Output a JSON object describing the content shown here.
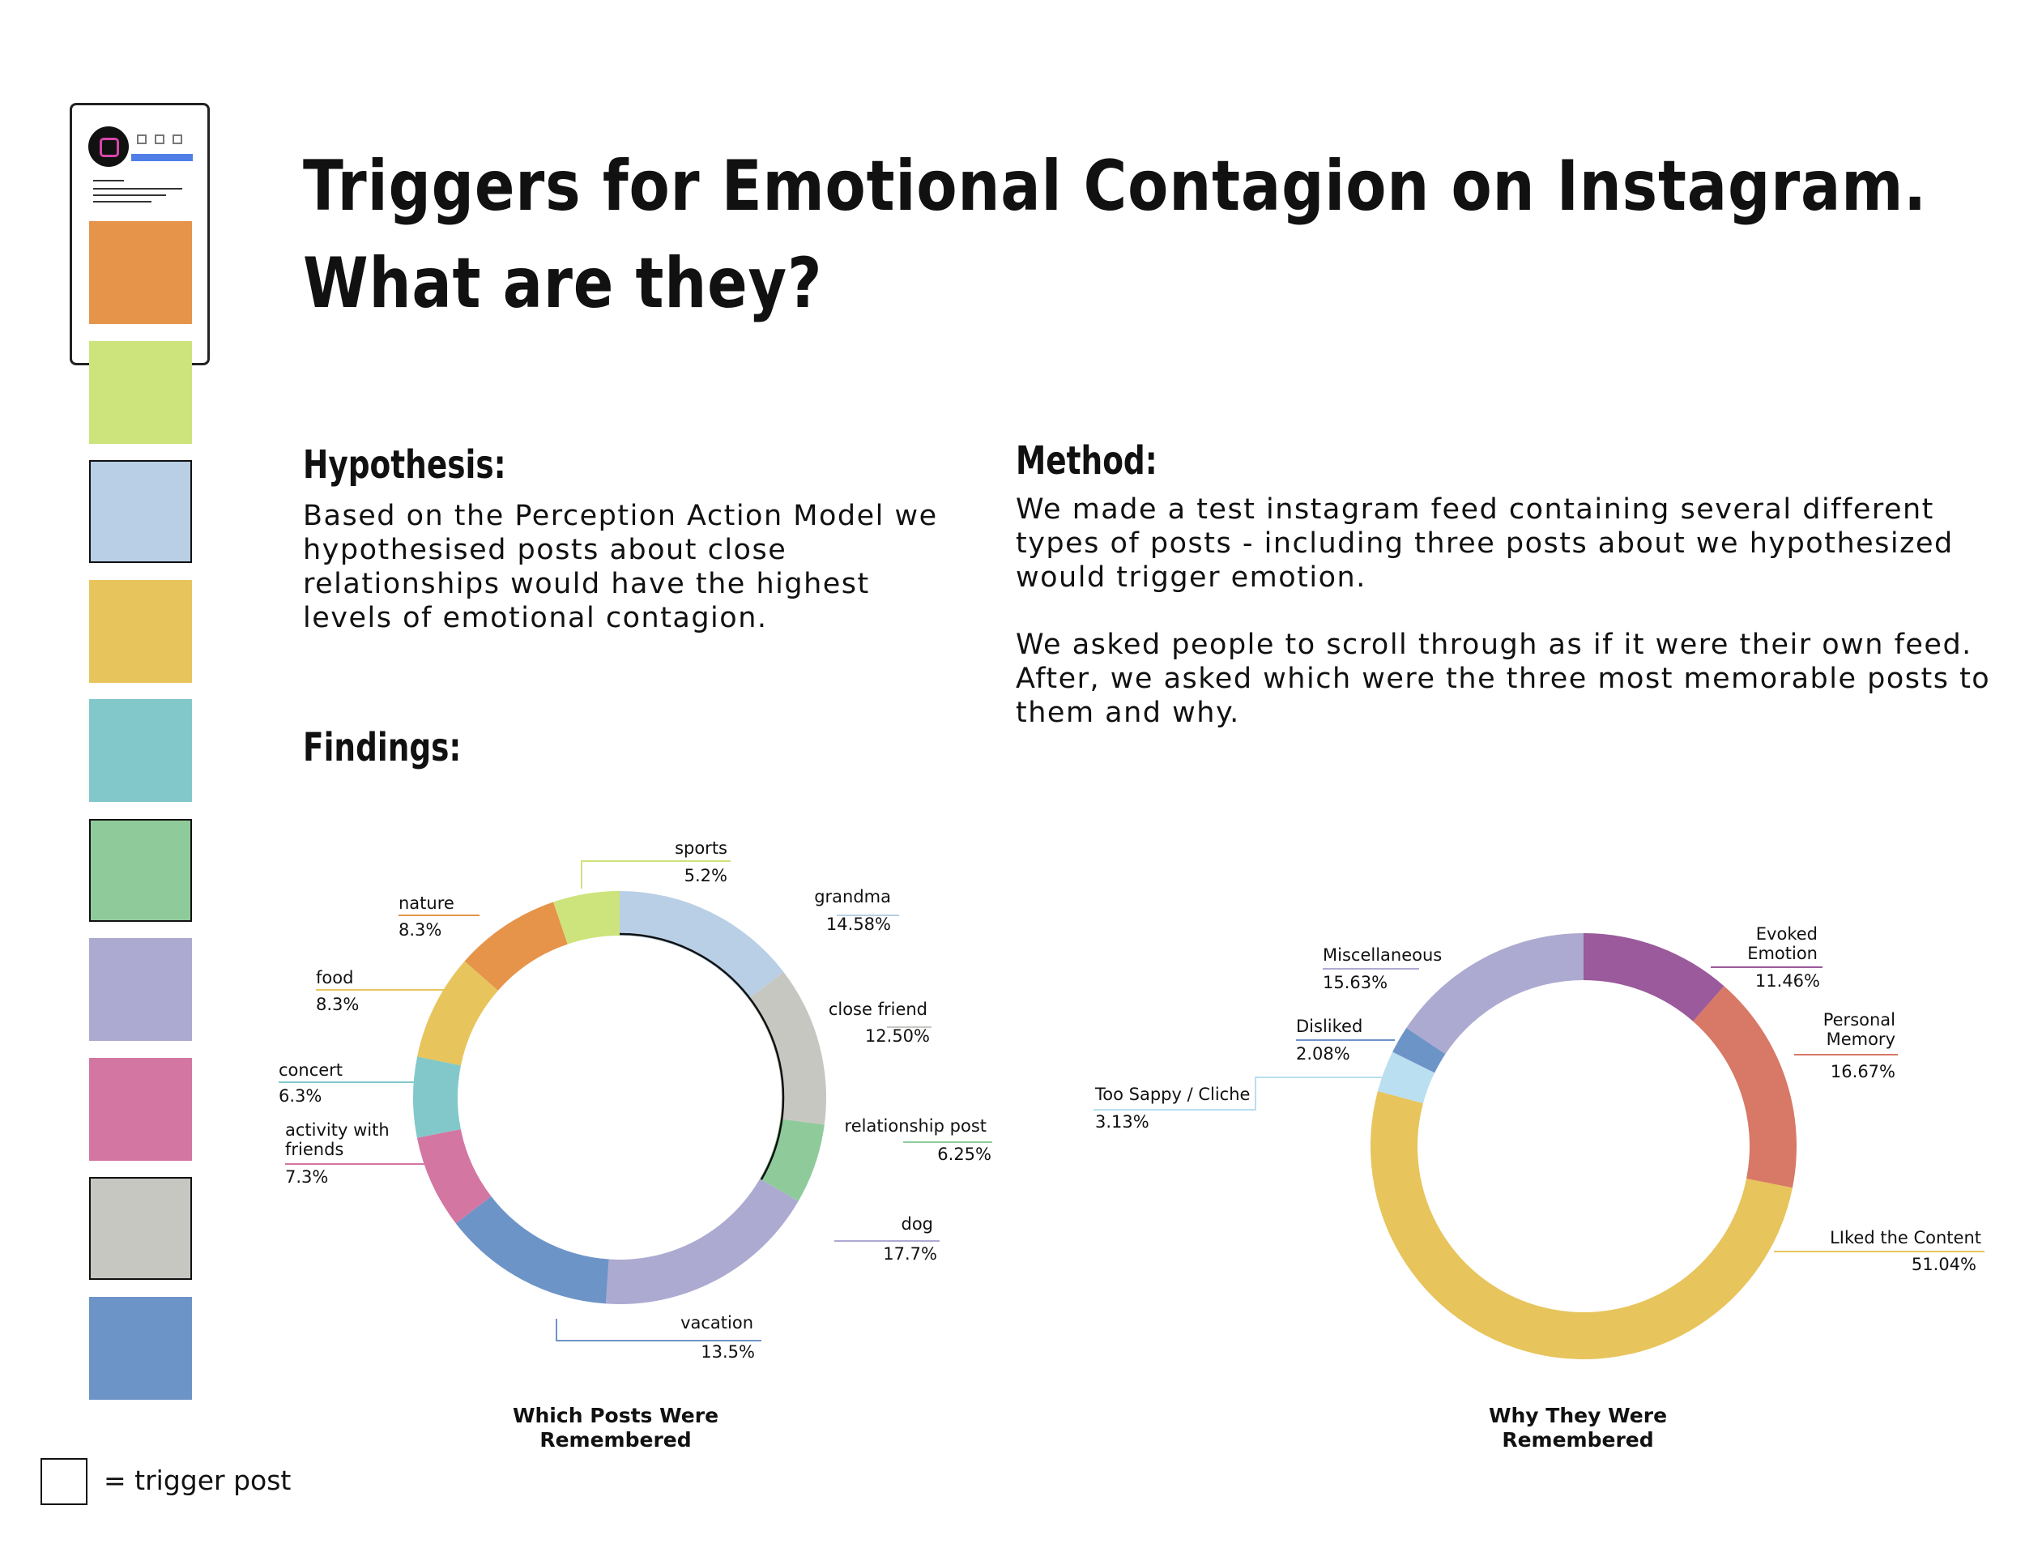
{
  "title": {
    "line1": "Triggers for Emotional Contagion on Instagram.",
    "line2": "What are they?"
  },
  "hypothesis": {
    "heading": "Hypothesis:",
    "text": "Based on the Perception Action Model we\nhypothesised posts about close\nrelationships would have the highest\nlevels of emotional contagion."
  },
  "method": {
    "heading": "Method:",
    "text1": "We made a test instagram feed containing several different\ntypes of posts - including three posts about we hypothesized\nwould trigger emotion.",
    "text2": "We asked people to scroll through as if it were their own feed.\nAfter, we asked which were the three most memorable posts to\nthem and why."
  },
  "findings": {
    "heading": "Findings:"
  },
  "feed": {
    "icon": "instagram-icon",
    "tiles": [
      {
        "color": "#E6944A",
        "trigger": false
      },
      {
        "color": "#CDE37C",
        "trigger": false
      },
      {
        "color": "#B8CFE6",
        "trigger": true
      },
      {
        "color": "#E7C45C",
        "trigger": false
      },
      {
        "color": "#82C8CA",
        "trigger": false
      },
      {
        "color": "#8FCB9A",
        "trigger": true
      },
      {
        "color": "#ADAAD1",
        "trigger": false
      },
      {
        "color": "#D476A2",
        "trigger": false
      },
      {
        "color": "#C7C7C2",
        "trigger": true
      },
      {
        "color": "#6D94C7",
        "trigger": false
      }
    ]
  },
  "legend": {
    "text": "= trigger post"
  },
  "chart_data": [
    {
      "type": "pie",
      "title": "Which Posts Were Remembered",
      "series": [
        {
          "label": "grandma",
          "value_label": "14.58%",
          "value": 14.58,
          "color": "#B8CFE6"
        },
        {
          "label": "close friend",
          "value_label": "12.50%",
          "value": 12.5,
          "color": "#C7C7C2"
        },
        {
          "label": "relationship post",
          "value_label": "6.25%",
          "value": 6.25,
          "color": "#8FCB9A"
        },
        {
          "label": "dog",
          "value_label": "17.7%",
          "value": 17.7,
          "color": "#ADAAD1"
        },
        {
          "label": "vacation",
          "value_label": "13.5%",
          "value": 13.5,
          "color": "#6D94C7"
        },
        {
          "label": "activity with friends",
          "value_label": "7.3%",
          "value": 7.3,
          "color": "#D476A2"
        },
        {
          "label": "concert",
          "value_label": "6.3%",
          "value": 6.3,
          "color": "#82C8CA"
        },
        {
          "label": "food",
          "value_label": "8.3%",
          "value": 8.3,
          "color": "#E7C45C"
        },
        {
          "label": "nature",
          "value_label": "8.3%",
          "value": 8.3,
          "color": "#E6944A"
        },
        {
          "label": "sports",
          "value_label": "5.2%",
          "value": 5.2,
          "color": "#CDE37C"
        }
      ]
    },
    {
      "type": "pie",
      "title": "Why They Were Remembered",
      "series": [
        {
          "label": "Evoked Emotion",
          "value_label": "11.46%",
          "value": 11.46,
          "color": "#9A5A9B"
        },
        {
          "label": "Personal Memory",
          "value_label": "16.67%",
          "value": 16.67,
          "color": "#D87866"
        },
        {
          "label": "LIked the Content",
          "value_label": "51.04%",
          "value": 51.04,
          "color": "#E7C45C"
        },
        {
          "label": "Too Sappy / Cliche",
          "value_label": "3.13%",
          "value": 3.13,
          "color": "#B9DFF0"
        },
        {
          "label": "Disliked",
          "value_label": "2.08%",
          "value": 2.08,
          "color": "#6D94C7"
        },
        {
          "label": "Miscellaneous",
          "value_label": "15.63%",
          "value": 15.63,
          "color": "#ADAAD1"
        }
      ]
    }
  ]
}
